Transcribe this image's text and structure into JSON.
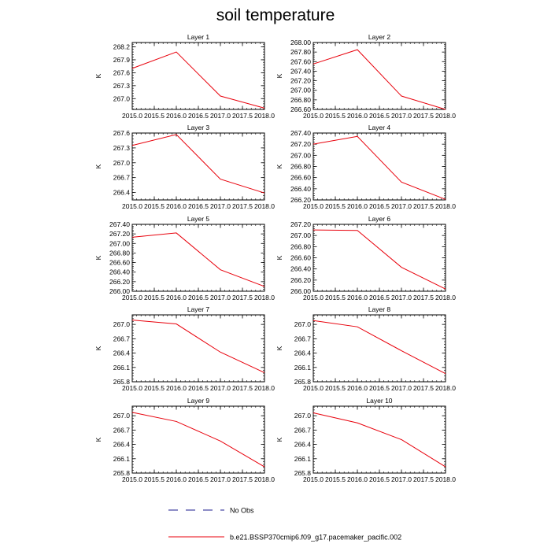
{
  "title": "soil temperature",
  "legend": {
    "obs_label": "No Obs",
    "model_label": "b.e21.BSSP370cmip6.f09_g17.pacemaker_pacific.002",
    "obs_color": "#1a1a8c",
    "model_color": "#e8000b"
  },
  "chart_data": [
    {
      "type": "line",
      "title": "Layer 1",
      "ylabel": "K",
      "xlabel": "",
      "x": [
        2015.0,
        2016.0,
        2017.0,
        2018.0
      ],
      "xlim": [
        2015.0,
        2018.0
      ],
      "xticks": [
        2015.0,
        2015.5,
        2016.0,
        2016.5,
        2017.0,
        2017.5,
        2018.0
      ],
      "xdecimals": 1,
      "ylim": [
        266.75,
        268.3
      ],
      "yticks": [
        267.0,
        267.3,
        267.6,
        267.9,
        268.2
      ],
      "ydecimals": 1,
      "series": [
        {
          "values": [
            267.7,
            268.08,
            267.06,
            266.78
          ]
        }
      ]
    },
    {
      "type": "line",
      "title": "Layer 2",
      "ylabel": "K",
      "xlabel": "",
      "x": [
        2015.0,
        2016.0,
        2017.0,
        2018.0
      ],
      "xlim": [
        2015.0,
        2018.0
      ],
      "xticks": [
        2015.0,
        2015.5,
        2016.0,
        2016.5,
        2017.0,
        2017.5,
        2018.0
      ],
      "xdecimals": 1,
      "ylim": [
        266.6,
        268.0
      ],
      "yticks": [
        266.6,
        266.8,
        267.0,
        267.2,
        267.4,
        267.6,
        267.8,
        268.0
      ],
      "ydecimals": 2,
      "series": [
        {
          "values": [
            267.55,
            267.85,
            266.88,
            266.6
          ]
        }
      ]
    },
    {
      "type": "line",
      "title": "Layer 3",
      "ylabel": "K",
      "xlabel": "",
      "x": [
        2015.0,
        2016.0,
        2017.0,
        2018.0
      ],
      "xlim": [
        2015.0,
        2018.0
      ],
      "xticks": [
        2015.0,
        2015.5,
        2016.0,
        2016.5,
        2017.0,
        2017.5,
        2018.0
      ],
      "xdecimals": 1,
      "ylim": [
        266.25,
        267.6
      ],
      "yticks": [
        266.4,
        266.7,
        267.0,
        267.3,
        267.6
      ],
      "ydecimals": 1,
      "series": [
        {
          "values": [
            267.35,
            267.57,
            266.67,
            266.39
          ]
        }
      ]
    },
    {
      "type": "line",
      "title": "Layer 4",
      "ylabel": "K",
      "xlabel": "",
      "x": [
        2015.0,
        2016.0,
        2017.0,
        2018.0
      ],
      "xlim": [
        2015.0,
        2018.0
      ],
      "xticks": [
        2015.0,
        2015.5,
        2016.0,
        2016.5,
        2017.0,
        2017.5,
        2018.0
      ],
      "xdecimals": 1,
      "ylim": [
        266.2,
        267.4
      ],
      "yticks": [
        266.2,
        266.4,
        266.6,
        266.8,
        267.0,
        267.2,
        267.4
      ],
      "ydecimals": 2,
      "series": [
        {
          "values": [
            267.2,
            267.34,
            266.52,
            266.21
          ]
        }
      ]
    },
    {
      "type": "line",
      "title": "Layer 5",
      "ylabel": "K",
      "xlabel": "",
      "x": [
        2015.0,
        2016.0,
        2017.0,
        2018.0
      ],
      "xlim": [
        2015.0,
        2018.0
      ],
      "xticks": [
        2015.0,
        2015.5,
        2016.0,
        2016.5,
        2017.0,
        2017.5,
        2018.0
      ],
      "xdecimals": 1,
      "ylim": [
        266.0,
        267.4
      ],
      "yticks": [
        266.0,
        266.2,
        266.4,
        266.6,
        266.8,
        267.0,
        267.2,
        267.4
      ],
      "ydecimals": 2,
      "series": [
        {
          "values": [
            267.13,
            267.22,
            266.45,
            266.1
          ]
        }
      ]
    },
    {
      "type": "line",
      "title": "Layer 6",
      "ylabel": "K",
      "xlabel": "",
      "x": [
        2015.0,
        2016.0,
        2017.0,
        2018.0
      ],
      "xlim": [
        2015.0,
        2018.0
      ],
      "xticks": [
        2015.0,
        2015.5,
        2016.0,
        2016.5,
        2017.0,
        2017.5,
        2018.0
      ],
      "xdecimals": 1,
      "ylim": [
        266.0,
        267.2
      ],
      "yticks": [
        266.0,
        266.2,
        266.4,
        266.6,
        266.8,
        267.0,
        267.2
      ],
      "ydecimals": 2,
      "series": [
        {
          "values": [
            267.1,
            267.09,
            266.43,
            266.04
          ]
        }
      ]
    },
    {
      "type": "line",
      "title": "Layer 7",
      "ylabel": "K",
      "xlabel": "",
      "x": [
        2015.0,
        2016.0,
        2017.0,
        2018.0
      ],
      "xlim": [
        2015.0,
        2018.0
      ],
      "xticks": [
        2015.0,
        2015.5,
        2016.0,
        2016.5,
        2017.0,
        2017.5,
        2018.0
      ],
      "xdecimals": 1,
      "ylim": [
        265.8,
        267.2
      ],
      "yticks": [
        265.8,
        266.1,
        266.4,
        266.7,
        267.0
      ],
      "ydecimals": 1,
      "series": [
        {
          "values": [
            267.09,
            267.01,
            266.42,
            265.99
          ]
        }
      ]
    },
    {
      "type": "line",
      "title": "Layer 8",
      "ylabel": "K",
      "xlabel": "",
      "x": [
        2015.0,
        2016.0,
        2017.0,
        2018.0
      ],
      "xlim": [
        2015.0,
        2018.0
      ],
      "xticks": [
        2015.0,
        2015.5,
        2016.0,
        2016.5,
        2017.0,
        2017.5,
        2018.0
      ],
      "xdecimals": 1,
      "ylim": [
        265.8,
        267.2
      ],
      "yticks": [
        265.8,
        266.1,
        266.4,
        266.7,
        267.0
      ],
      "ydecimals": 1,
      "series": [
        {
          "values": [
            267.08,
            266.95,
            266.45,
            265.97
          ]
        }
      ]
    },
    {
      "type": "line",
      "title": "Layer 9",
      "ylabel": "K",
      "xlabel": "",
      "x": [
        2015.0,
        2016.0,
        2017.0,
        2018.0
      ],
      "xlim": [
        2015.0,
        2018.0
      ],
      "xticks": [
        2015.0,
        2015.5,
        2016.0,
        2016.5,
        2017.0,
        2017.5,
        2018.0
      ],
      "xdecimals": 1,
      "ylim": [
        265.8,
        267.2
      ],
      "yticks": [
        265.8,
        266.1,
        266.4,
        266.7,
        267.0
      ],
      "ydecimals": 1,
      "series": [
        {
          "values": [
            267.07,
            266.88,
            266.47,
            265.93
          ]
        }
      ]
    },
    {
      "type": "line",
      "title": "Layer 10",
      "ylabel": "K",
      "xlabel": "",
      "x": [
        2015.0,
        2016.0,
        2017.0,
        2018.0
      ],
      "xlim": [
        2015.0,
        2018.0
      ],
      "xticks": [
        2015.0,
        2015.5,
        2016.0,
        2016.5,
        2017.0,
        2017.5,
        2018.0
      ],
      "xdecimals": 1,
      "ylim": [
        265.8,
        267.2
      ],
      "yticks": [
        265.8,
        266.1,
        266.4,
        266.7,
        267.0
      ],
      "ydecimals": 1,
      "series": [
        {
          "values": [
            267.06,
            266.85,
            266.5,
            265.93
          ]
        }
      ]
    }
  ]
}
